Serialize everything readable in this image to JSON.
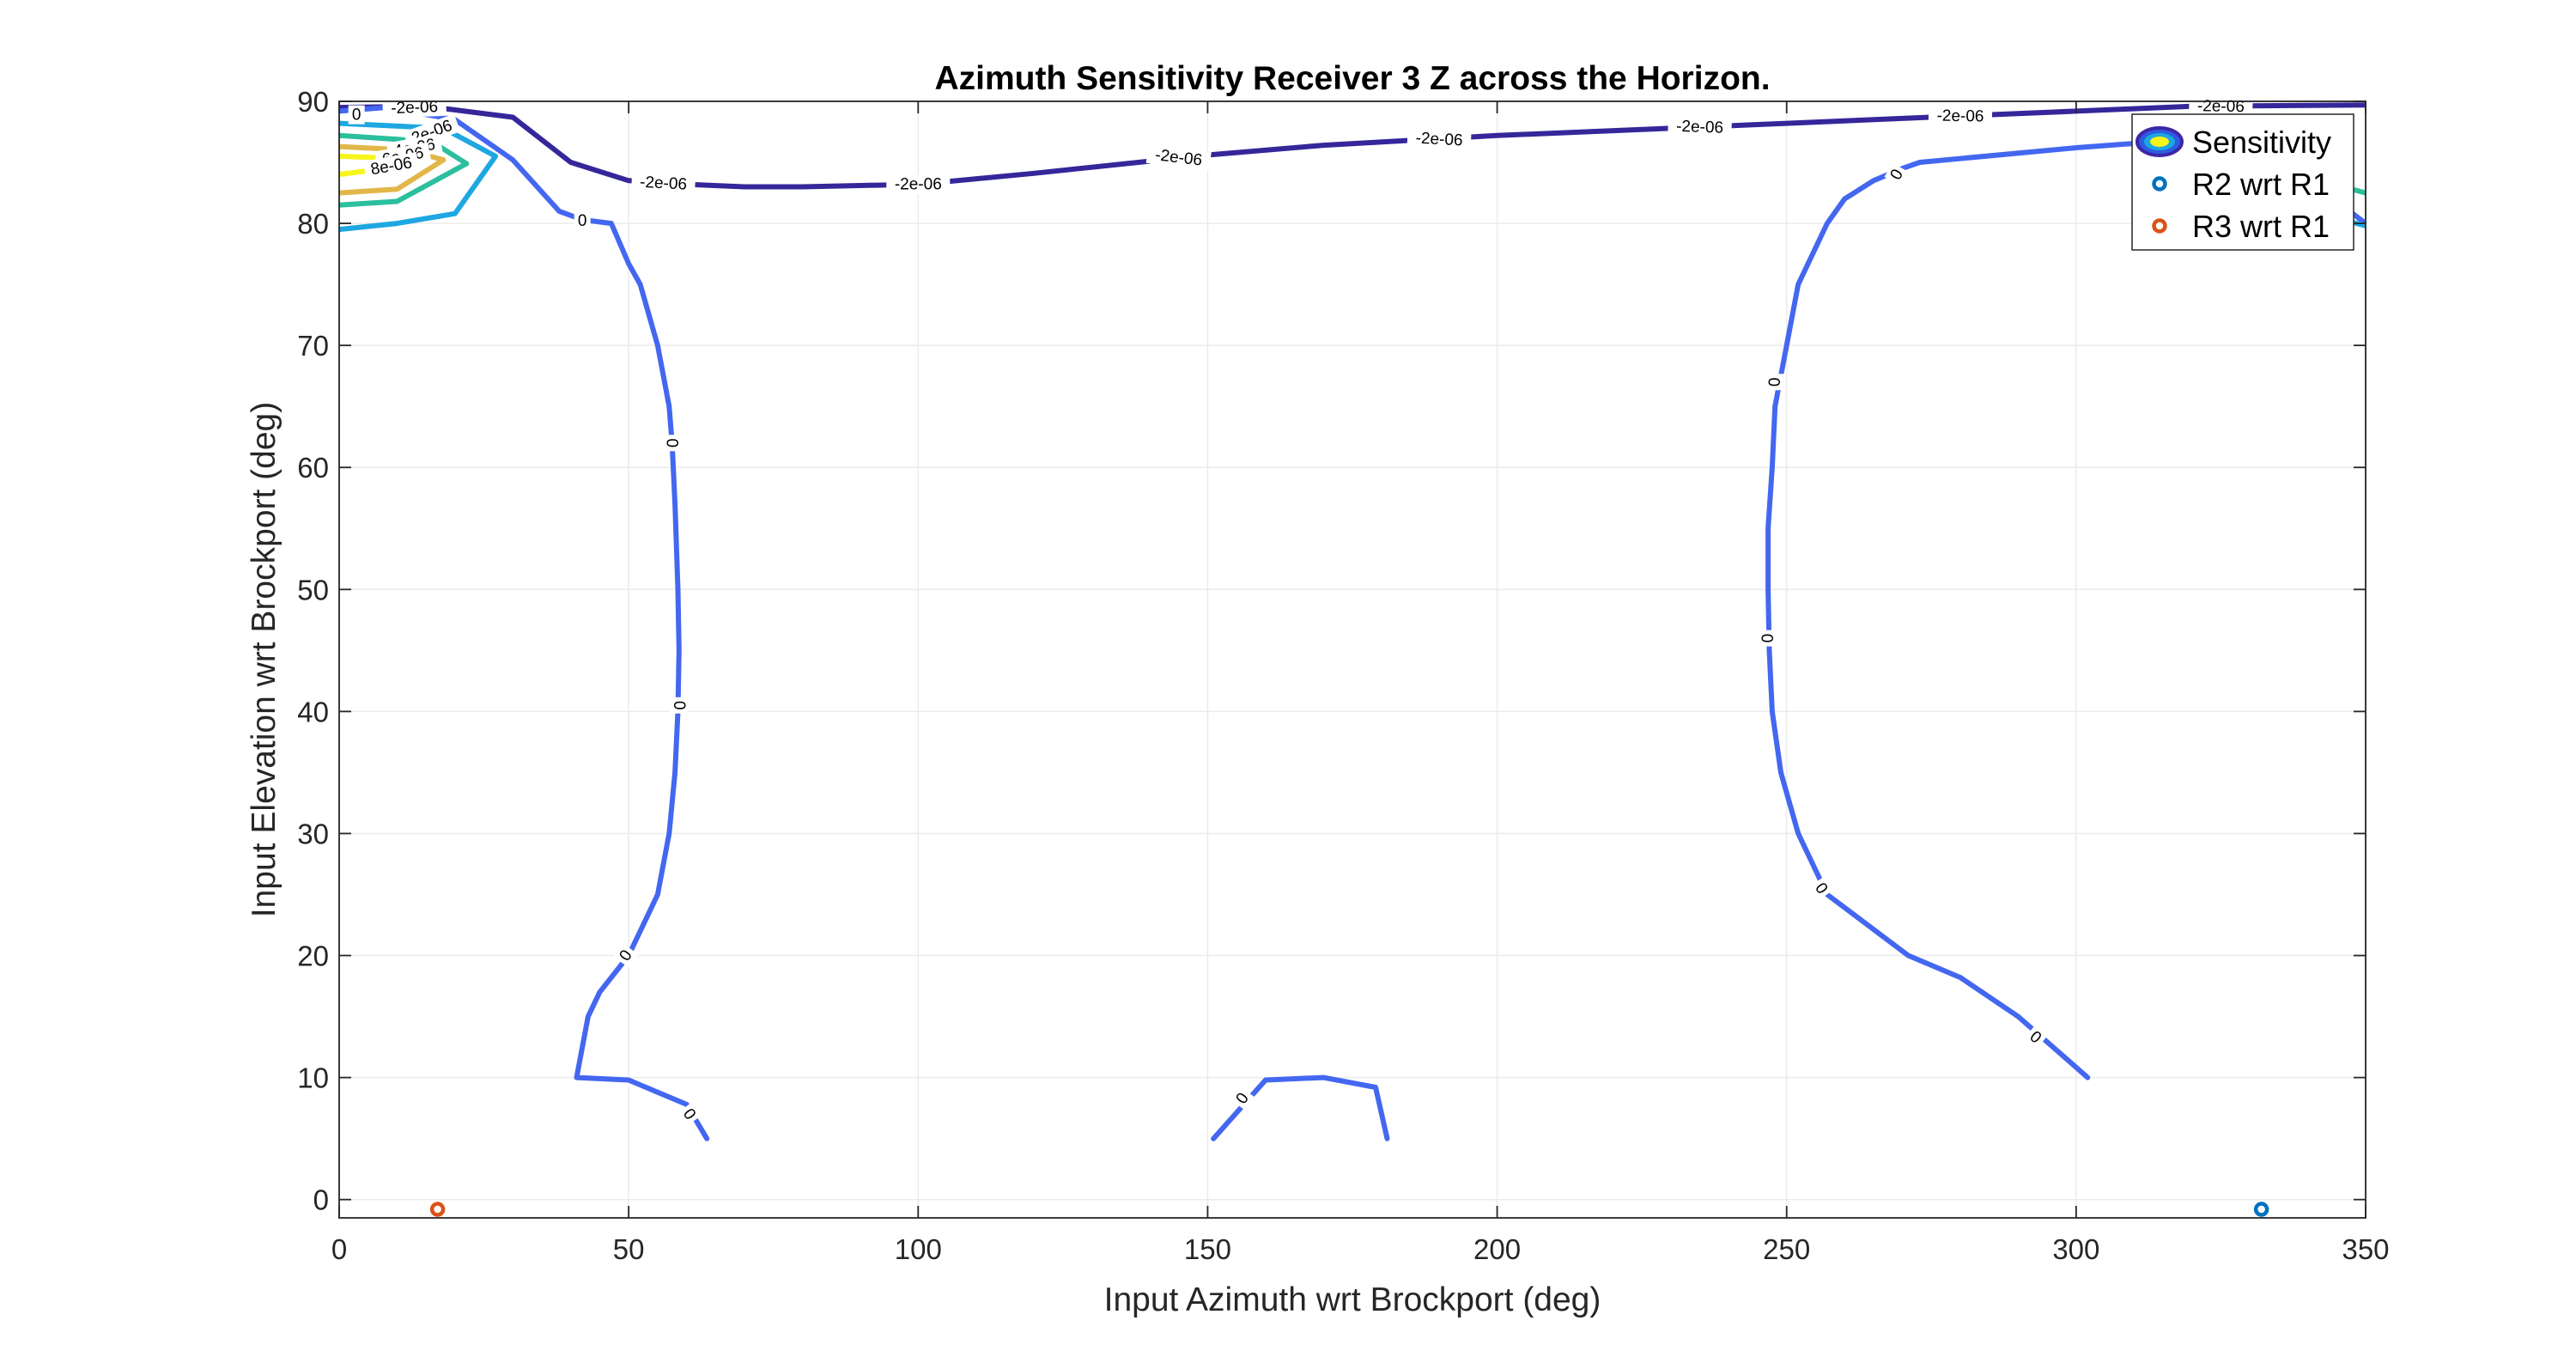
{
  "chart_data": {
    "type": "contour",
    "title": "Azimuth Sensitivity Receiver 3 Z across the Horizon.",
    "xlabel": "Input Azimuth wrt Brockport (deg)",
    "ylabel": "Input Elevation wrt Brockport (deg)",
    "xlim": [
      0,
      350
    ],
    "ylim": [
      -1.5,
      90
    ],
    "xticks": [
      0,
      50,
      100,
      150,
      200,
      250,
      300,
      350
    ],
    "yticks": [
      0,
      10,
      20,
      30,
      40,
      50,
      60,
      70,
      80,
      90
    ],
    "grid": true,
    "legend_position": "top-right",
    "legend": [
      {
        "label": "Sensitivity",
        "marker": "contour",
        "color": "#3e26a8"
      },
      {
        "label": "R2 wrt R1",
        "marker": "circle",
        "color": "#0072bd"
      },
      {
        "label": "R3 wrt R1",
        "marker": "circle",
        "color": "#d95319"
      }
    ],
    "contours": [
      {
        "level": "-2e-06",
        "color": "#35279a",
        "segments": [
          [
            [
              0,
              89.5
            ],
            [
              15,
              89.6
            ],
            [
              30,
              88.7
            ],
            [
              40,
              85
            ],
            [
              50,
              83.5
            ],
            [
              60,
              83.2
            ],
            [
              70,
              83
            ],
            [
              80,
              83
            ],
            [
              90,
              83.1
            ],
            [
              100,
              83.2
            ],
            [
              120,
              84.1
            ],
            [
              140,
              85.1
            ],
            [
              150,
              85.6
            ],
            [
              170,
              86.4
            ],
            [
              200,
              87.2
            ],
            [
              225,
              87.7
            ],
            [
              250,
              88.2
            ],
            [
              280,
              88.8
            ],
            [
              300,
              89.2
            ],
            [
              320,
              89.6
            ],
            [
              350,
              89.7
            ]
          ]
        ],
        "labels": [
          [
            13,
            89.5,
            -2
          ],
          [
            56,
            83.3,
            3
          ],
          [
            100,
            83.2,
            0
          ],
          [
            145,
            85.4,
            7
          ],
          [
            190,
            86.9,
            3
          ],
          [
            235,
            87.9,
            2
          ],
          [
            280,
            88.8,
            1
          ],
          [
            325,
            89.6,
            1
          ]
        ]
      },
      {
        "level": "0",
        "color": "#4467f0",
        "segments": [
          [
            [
              0,
              89.2
            ],
            [
              8,
              89.5
            ],
            [
              20,
              88.5
            ],
            [
              30,
              85.2
            ],
            [
              38,
              81
            ],
            [
              42,
              80.3
            ],
            [
              47,
              80
            ],
            [
              50,
              76.7
            ],
            [
              52,
              75
            ],
            [
              55,
              70
            ],
            [
              57,
              65
            ],
            [
              57.5,
              62
            ],
            [
              58,
              57
            ],
            [
              58.5,
              50
            ],
            [
              58.7,
              45
            ],
            [
              58.5,
              40
            ],
            [
              58,
              35
            ],
            [
              57,
              30
            ],
            [
              55,
              25
            ],
            [
              50,
              20
            ],
            [
              45,
              17
            ],
            [
              43,
              15
            ],
            [
              41,
              10
            ],
            [
              50,
              9.8
            ],
            [
              60,
              7.8
            ],
            [
              63.5,
              5
            ]
          ],
          [
            [
              151,
              5
            ],
            [
              160,
              9.8
            ],
            [
              170,
              10
            ],
            [
              179,
              9.2
            ],
            [
              181,
              5
            ]
          ],
          [
            [
              302,
              10
            ],
            [
              290,
              15
            ],
            [
              280,
              18.2
            ],
            [
              271,
              20
            ],
            [
              257,
              25
            ],
            [
              252,
              30
            ],
            [
              249,
              35
            ],
            [
              247.5,
              40
            ],
            [
              247,
              45
            ],
            [
              246.8,
              50
            ],
            [
              246.8,
              55
            ],
            [
              247.5,
              60
            ],
            [
              248,
              65
            ],
            [
              250,
              70
            ],
            [
              252,
              75
            ],
            [
              257,
              80
            ],
            [
              260,
              82
            ],
            [
              265,
              83.5
            ],
            [
              270,
              84.5
            ],
            [
              273,
              85
            ],
            [
              300,
              86.2
            ],
            [
              320,
              86.9
            ],
            [
              330,
              87.2
            ],
            [
              350,
              80
            ]
          ]
        ],
        "labels": [
          [
            3,
            88.9,
            0
          ],
          [
            42,
            80.2,
            0
          ],
          [
            57.5,
            62,
            90
          ],
          [
            58.7,
            40.5,
            90
          ],
          [
            49.5,
            20,
            -55
          ],
          [
            60.5,
            7,
            55
          ],
          [
            156,
            8.3,
            -55
          ],
          [
            248,
            67,
            -90
          ],
          [
            246.8,
            46,
            -90
          ],
          [
            256,
            25.5,
            55
          ],
          [
            293,
            13.3,
            40
          ],
          [
            269,
            84,
            -60
          ]
        ]
      },
      {
        "level": "2e-06",
        "color": "#1ea7e1",
        "segments": [
          [
            [
              0,
              79.5
            ],
            [
              10,
              80
            ],
            [
              20,
              80.8
            ],
            [
              27,
              85.5
            ],
            [
              18,
              87.8
            ],
            [
              0,
              88.2
            ]
          ],
          [
            [
              350,
              79.8
            ],
            [
              346,
              80.3
            ]
          ]
        ],
        "labels": [
          [
            16,
            87.5,
            -20
          ]
        ]
      },
      {
        "level": "4e-06",
        "color": "#2bbf9e",
        "segments": [
          [
            [
              0,
              81.5
            ],
            [
              10,
              81.8
            ],
            [
              22,
              84.9
            ],
            [
              16,
              86.7
            ],
            [
              0,
              87.2
            ]
          ],
          [
            [
              350,
              82.5
            ],
            [
              346,
              83
            ]
          ]
        ],
        "labels": [
          [
            13,
            86.2,
            -10
          ]
        ]
      },
      {
        "level": "6e-06",
        "color": "#e2b74a",
        "segments": [
          [
            [
              0,
              82.5
            ],
            [
              10,
              82.8
            ],
            [
              18,
              85.2
            ],
            [
              12,
              86
            ],
            [
              0,
              86.3
            ]
          ]
        ],
        "labels": [
          [
            11,
            85.5,
            -10
          ]
        ]
      },
      {
        "level": "8e-06",
        "color": "#f7f51a",
        "segments": [
          [
            [
              0,
              84
            ],
            [
              8,
              84.5
            ],
            [
              13,
              85
            ],
            [
              6,
              85.4
            ],
            [
              0,
              85.5
            ]
          ]
        ],
        "labels": [
          [
            9,
            84.7,
            -10
          ]
        ]
      }
    ],
    "points": [
      {
        "name": "R2 wrt R1",
        "x": 332,
        "y": -0.8,
        "color": "#0072bd"
      },
      {
        "name": "R3 wrt R1",
        "x": 17,
        "y": -0.8,
        "color": "#d95319"
      }
    ]
  }
}
